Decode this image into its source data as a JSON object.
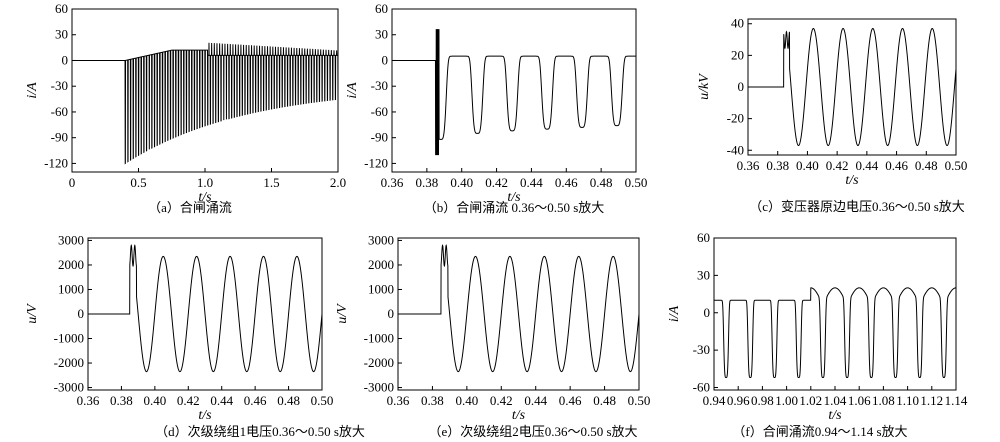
{
  "chart_data": [
    {
      "id": "a",
      "type": "line",
      "caption": "（a）合闸涌流",
      "xlabel": "t/s",
      "ylabel": "i/A",
      "xlim": [
        0,
        2.0
      ],
      "ylim": [
        -130,
        60
      ],
      "xticks": [
        "0",
        "0.5",
        "1.0",
        "1.5",
        "2.0"
      ],
      "xtick_values": [
        0,
        0.5,
        1.0,
        1.5,
        2.0
      ],
      "yticks": [
        "60",
        "30",
        "0",
        "-30",
        "-60",
        "-90",
        "-120"
      ],
      "ytick_values": [
        60,
        30,
        0,
        -30,
        -60,
        -90,
        -120
      ],
      "signal": {
        "kind": "inrush_overview",
        "switch_time": 0.4,
        "start_peak": 40,
        "start_trough": -120,
        "envelope_max": 12,
        "steady_trough": -30,
        "second_event_time": 1.02,
        "second_event_peak": 23
      }
    },
    {
      "id": "b",
      "type": "line",
      "caption": "（b）合闸涌流 0.36～0.50 s放大",
      "xlabel": "t/s",
      "ylabel": "i/A",
      "xlim": [
        0.36,
        0.5
      ],
      "ylim": [
        -130,
        60
      ],
      "xticks": [
        "0.36",
        "0.38",
        "0.40",
        "0.42",
        "0.44",
        "0.46",
        "0.48",
        "0.50"
      ],
      "xtick_values": [
        0.36,
        0.38,
        0.4,
        0.42,
        0.44,
        0.46,
        0.48,
        0.5
      ],
      "yticks": [
        "60",
        "30",
        "0",
        "-30",
        "-60",
        "-90",
        "-120"
      ],
      "ytick_values": [
        60,
        30,
        0,
        -30,
        -60,
        -90,
        -120
      ],
      "signal": {
        "kind": "inrush_zoom",
        "switch_time": 0.385,
        "spike_max": 40,
        "spike_min": -122,
        "trough_times": [
          0.388,
          0.409,
          0.429,
          0.449,
          0.469,
          0.489
        ],
        "trough_values": [
          -92,
          -85,
          -82,
          -80,
          -78,
          -76
        ],
        "baseline": 5
      }
    },
    {
      "id": "c",
      "type": "line",
      "caption": "（c）变压器原边电压0.36～0.50 s放大",
      "xlabel": "t/s",
      "ylabel": "u/kV",
      "xlim": [
        0.36,
        0.5
      ],
      "ylim": [
        -43,
        43
      ],
      "xticks": [
        "0.36",
        "0.38",
        "0.40",
        "0.42",
        "0.44",
        "0.46",
        "0.48",
        "0.50"
      ],
      "xtick_values": [
        0.36,
        0.38,
        0.4,
        0.42,
        0.44,
        0.46,
        0.48,
        0.5
      ],
      "yticks": [
        "40",
        "20",
        "0",
        "-20",
        "-40"
      ],
      "ytick_values": [
        40,
        20,
        0,
        -20,
        -40
      ],
      "signal": {
        "kind": "sine_after_switch",
        "switch_time": 0.384,
        "amplitude": 37,
        "frequency_hz": 50,
        "first_peak_time": 0.404,
        "spike": 35
      }
    },
    {
      "id": "d",
      "type": "line",
      "caption": "（d）次级绕组1电压0.36～0.50 s放大",
      "xlabel": "t/s",
      "ylabel": "u/V",
      "xlim": [
        0.36,
        0.5
      ],
      "ylim": [
        -3100,
        3100
      ],
      "xticks": [
        "0.36",
        "0.38",
        "0.40",
        "0.42",
        "0.44",
        "0.46",
        "0.48",
        "0.50"
      ],
      "xtick_values": [
        0.36,
        0.38,
        0.4,
        0.42,
        0.44,
        0.46,
        0.48,
        0.5
      ],
      "yticks": [
        "3000",
        "2000",
        "1000",
        "0",
        "-1000",
        "-2000",
        "-3000"
      ],
      "ytick_values": [
        3000,
        2000,
        1000,
        0,
        -1000,
        -2000,
        -3000
      ],
      "signal": {
        "kind": "sine_after_switch",
        "switch_time": 0.385,
        "amplitude": 2350,
        "frequency_hz": 50,
        "first_peak_time": 0.405,
        "spike": 2800
      }
    },
    {
      "id": "e",
      "type": "line",
      "caption": "（e）次级绕组2电压0.36～0.50 s放大",
      "xlabel": "t/s",
      "ylabel": "u/V",
      "xlim": [
        0.36,
        0.5
      ],
      "ylim": [
        -3100,
        3100
      ],
      "xticks": [
        "0.36",
        "0.38",
        "0.40",
        "0.42",
        "0.44",
        "0.46",
        "0.48",
        "0.50"
      ],
      "xtick_values": [
        0.36,
        0.38,
        0.4,
        0.42,
        0.44,
        0.46,
        0.48,
        0.5
      ],
      "yticks": [
        "3000",
        "2000",
        "1000",
        "0",
        "-1000",
        "-2000",
        "-3000"
      ],
      "ytick_values": [
        3000,
        2000,
        1000,
        0,
        -1000,
        -2000,
        -3000
      ],
      "signal": {
        "kind": "sine_after_switch",
        "switch_time": 0.385,
        "amplitude": 2350,
        "frequency_hz": 50,
        "first_peak_time": 0.405,
        "spike": 2800
      }
    },
    {
      "id": "f",
      "type": "line",
      "caption": "（f）合闸涌流0.94～1.14  s放大",
      "xlabel": "t/s",
      "ylabel": "i/A",
      "xlim": [
        0.94,
        1.14
      ],
      "ylim": [
        -62,
        60
      ],
      "xticks": [
        "0.94",
        "0.96",
        "0.98",
        "1.00",
        "1.02",
        "1.04",
        "1.06",
        "1.08",
        "1.10",
        "1.12",
        "1.14"
      ],
      "xtick_values": [
        0.94,
        0.96,
        0.98,
        1.0,
        1.02,
        1.04,
        1.06,
        1.08,
        1.1,
        1.12,
        1.14
      ],
      "yticks": [
        "60",
        "30",
        "0",
        "-30",
        "-60"
      ],
      "ytick_values": [
        60,
        30,
        0,
        -30,
        -60
      ],
      "signal": {
        "kind": "inrush_late",
        "trough_times": [
          0.95,
          0.97,
          0.99,
          1.01,
          1.03,
          1.05,
          1.07,
          1.09,
          1.11,
          1.13
        ],
        "trough_value": -52,
        "plateau_before": 10,
        "peak_after": 20,
        "change_time": 1.02
      }
    }
  ]
}
